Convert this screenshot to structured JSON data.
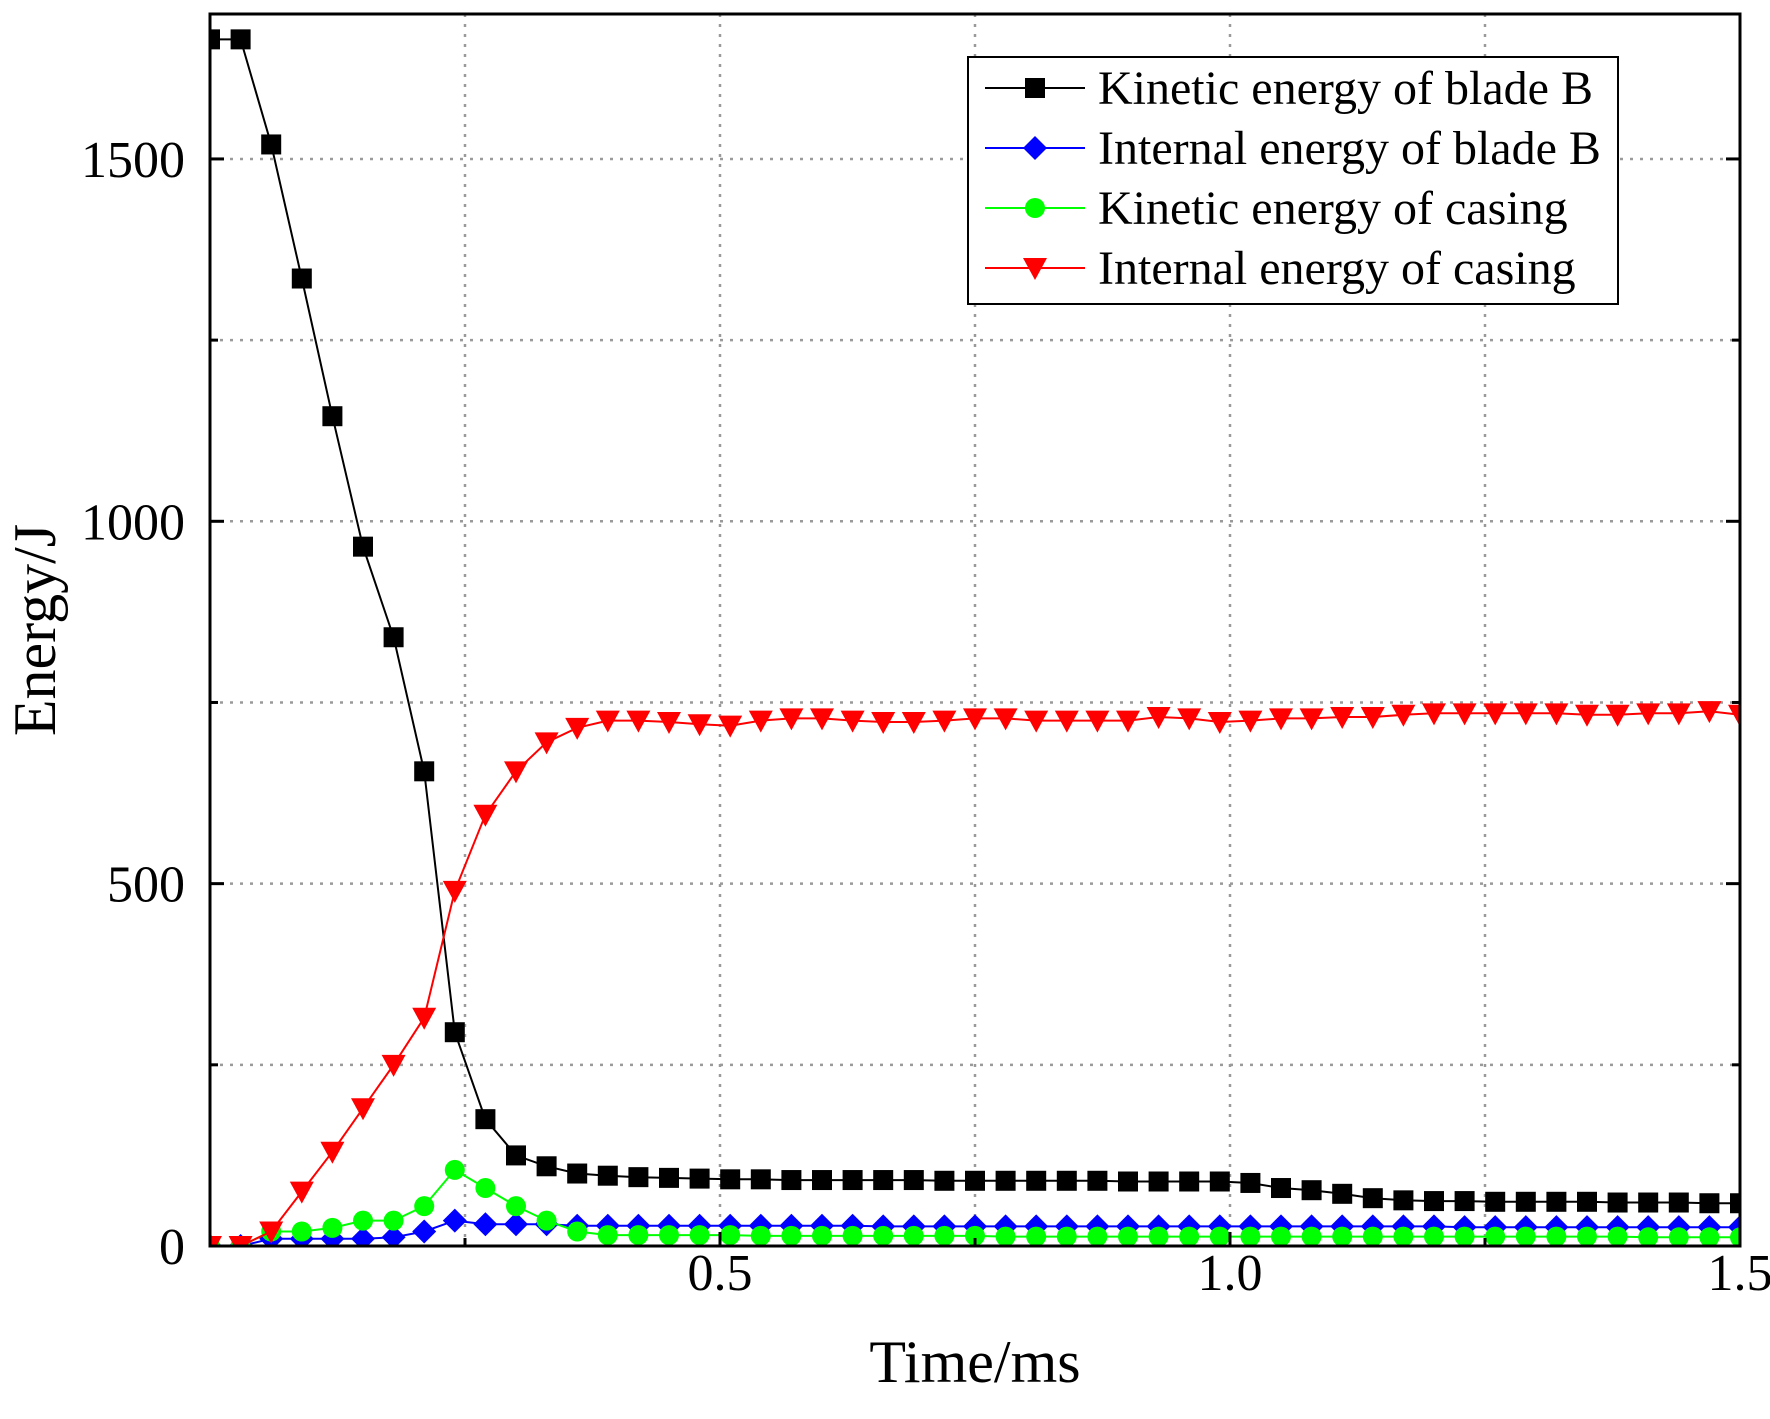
{
  "chart_data": {
    "type": "line",
    "xlabel": "Time/ms",
    "ylabel": "Energy/J",
    "xlim": [
      0,
      1.5
    ],
    "ylim": [
      0,
      1700
    ],
    "x_ticks": [
      0.5,
      1.0,
      1.5
    ],
    "x_tick_labels": [
      "0.5",
      "1.0",
      "1.5"
    ],
    "y_ticks": [
      0,
      500,
      1000,
      1500
    ],
    "y_tick_labels": [
      "0",
      "500",
      "1000",
      "1500"
    ],
    "grid": true,
    "legend_position": "top-right",
    "series": [
      {
        "name": "Kinetic energy of blade B",
        "color": "#000000",
        "marker": "square",
        "x": [
          0,
          0.03,
          0.06,
          0.09,
          0.12,
          0.15,
          0.18,
          0.21,
          0.24,
          0.27,
          0.3,
          0.33,
          0.36,
          0.39,
          0.42,
          0.45,
          0.48,
          0.51,
          0.54,
          0.57,
          0.6,
          0.63,
          0.66,
          0.69,
          0.72,
          0.75,
          0.78,
          0.81,
          0.84,
          0.87,
          0.9,
          0.93,
          0.96,
          0.99,
          1.02,
          1.05,
          1.08,
          1.11,
          1.14,
          1.17,
          1.2,
          1.23,
          1.26,
          1.29,
          1.32,
          1.35,
          1.38,
          1.41,
          1.44,
          1.47,
          1.5
        ],
        "values": [
          1665,
          1665,
          1520,
          1335,
          1145,
          965,
          840,
          655,
          295,
          175,
          125,
          110,
          100,
          97,
          95,
          94,
          93,
          92,
          92,
          91,
          91,
          91,
          91,
          91,
          90,
          90,
          90,
          90,
          90,
          90,
          89,
          89,
          89,
          89,
          87,
          80,
          77,
          72,
          66,
          63,
          62,
          62,
          61,
          61,
          61,
          61,
          60,
          60,
          60,
          59,
          59
        ]
      },
      {
        "name": "Internal energy of blade B",
        "color": "#0000ff",
        "marker": "diamond",
        "x": [
          0,
          0.03,
          0.06,
          0.09,
          0.12,
          0.15,
          0.18,
          0.21,
          0.24,
          0.27,
          0.3,
          0.33,
          0.36,
          0.39,
          0.42,
          0.45,
          0.48,
          0.51,
          0.54,
          0.57,
          0.6,
          0.63,
          0.66,
          0.69,
          0.72,
          0.75,
          0.78,
          0.81,
          0.84,
          0.87,
          0.9,
          0.93,
          0.96,
          0.99,
          1.02,
          1.05,
          1.08,
          1.11,
          1.14,
          1.17,
          1.2,
          1.23,
          1.26,
          1.29,
          1.32,
          1.35,
          1.38,
          1.41,
          1.44,
          1.47,
          1.5
        ],
        "values": [
          0,
          0,
          10,
          10,
          10,
          10,
          12,
          20,
          35,
          30,
          30,
          30,
          28,
          28,
          28,
          28,
          28,
          28,
          28,
          28,
          28,
          28,
          27,
          27,
          27,
          27,
          27,
          27,
          27,
          27,
          27,
          27,
          27,
          27,
          27,
          27,
          27,
          27,
          27,
          27,
          27,
          26,
          26,
          26,
          26,
          26,
          26,
          26,
          26,
          26,
          26
        ]
      },
      {
        "name": "Kinetic energy of casing",
        "color": "#00ff00",
        "marker": "circle",
        "x": [
          0,
          0.03,
          0.06,
          0.09,
          0.12,
          0.15,
          0.18,
          0.21,
          0.24,
          0.27,
          0.3,
          0.33,
          0.36,
          0.39,
          0.42,
          0.45,
          0.48,
          0.51,
          0.54,
          0.57,
          0.6,
          0.63,
          0.66,
          0.69,
          0.72,
          0.75,
          0.78,
          0.81,
          0.84,
          0.87,
          0.9,
          0.93,
          0.96,
          0.99,
          1.02,
          1.05,
          1.08,
          1.11,
          1.14,
          1.17,
          1.2,
          1.23,
          1.26,
          1.29,
          1.32,
          1.35,
          1.38,
          1.41,
          1.44,
          1.47,
          1.5
        ],
        "values": [
          0,
          0,
          20,
          20,
          25,
          35,
          35,
          55,
          105,
          80,
          55,
          35,
          20,
          15,
          15,
          15,
          15,
          15,
          14,
          14,
          14,
          14,
          14,
          14,
          14,
          14,
          13,
          13,
          13,
          13,
          13,
          13,
          13,
          13,
          13,
          13,
          13,
          13,
          13,
          13,
          13,
          13,
          13,
          13,
          13,
          13,
          13,
          12,
          12,
          12,
          12
        ]
      },
      {
        "name": "Internal energy of casing",
        "color": "#ff0000",
        "marker": "triangle-down",
        "x": [
          0,
          0.03,
          0.06,
          0.09,
          0.12,
          0.15,
          0.18,
          0.21,
          0.24,
          0.27,
          0.3,
          0.33,
          0.36,
          0.39,
          0.42,
          0.45,
          0.48,
          0.51,
          0.54,
          0.57,
          0.6,
          0.63,
          0.66,
          0.69,
          0.72,
          0.75,
          0.78,
          0.81,
          0.84,
          0.87,
          0.9,
          0.93,
          0.96,
          0.99,
          1.02,
          1.05,
          1.08,
          1.11,
          1.14,
          1.17,
          1.2,
          1.23,
          1.26,
          1.29,
          1.32,
          1.35,
          1.38,
          1.41,
          1.44,
          1.47,
          1.5
        ],
        "values": [
          0,
          0,
          20,
          75,
          130,
          190,
          250,
          315,
          490,
          595,
          655,
          695,
          715,
          725,
          725,
          723,
          720,
          718,
          725,
          728,
          728,
          725,
          723,
          723,
          725,
          728,
          728,
          725,
          725,
          725,
          725,
          730,
          728,
          723,
          725,
          728,
          728,
          730,
          730,
          733,
          735,
          735,
          735,
          735,
          735,
          733,
          733,
          735,
          735,
          738,
          733
        ]
      }
    ]
  }
}
